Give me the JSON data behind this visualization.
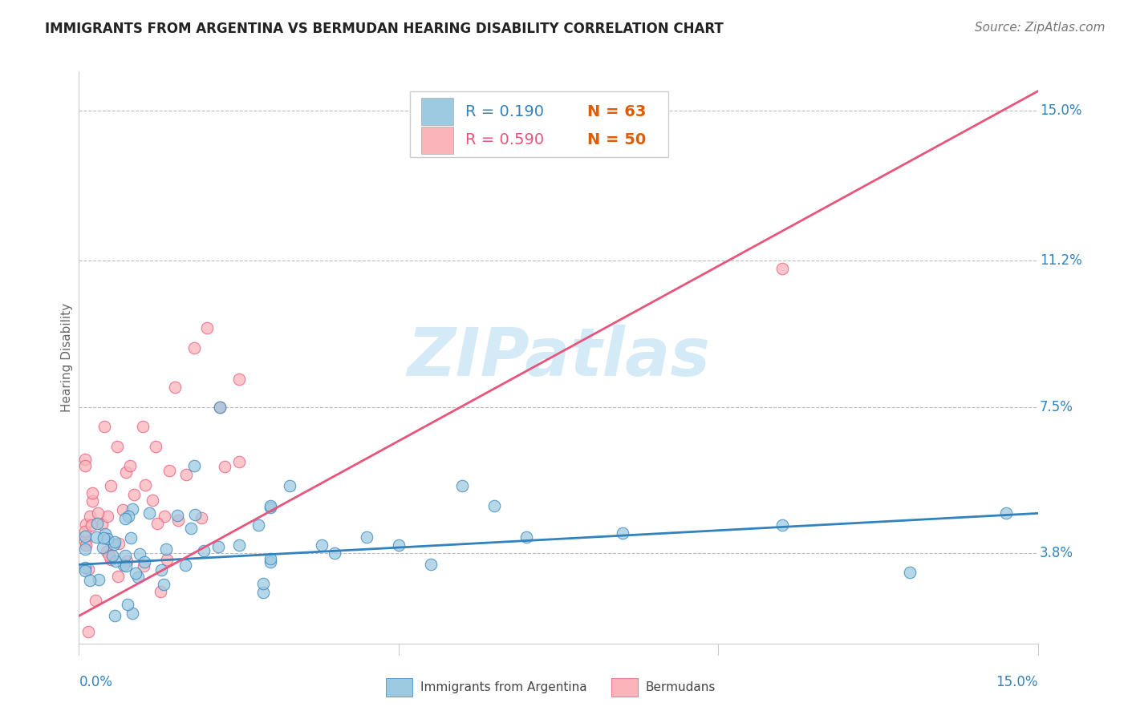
{
  "title": "IMMIGRANTS FROM ARGENTINA VS BERMUDAN HEARING DISABILITY CORRELATION CHART",
  "source": "Source: ZipAtlas.com",
  "ylabel": "Hearing Disability",
  "xlim": [
    0.0,
    0.15
  ],
  "ylim": [
    0.015,
    0.16
  ],
  "ytick_vals": [
    0.038,
    0.075,
    0.112,
    0.15
  ],
  "ytick_labels": [
    "3.8%",
    "7.5%",
    "11.2%",
    "15.0%"
  ],
  "legend_r1": "R = 0.190",
  "legend_n1": "N = 63",
  "legend_r2": "R = 0.590",
  "legend_n2": "N = 50",
  "color_blue": "#9ecae1",
  "color_pink": "#fbb4b9",
  "line_color_blue": "#3182bd",
  "line_color_pink": "#e8547a",
  "legend_r_color_blue": "#3182bd",
  "legend_r_color_pink": "#e8547a",
  "legend_n_color": "#e05c00",
  "watermark": "ZIPatlas",
  "title_fontsize": 12,
  "axis_label_fontsize": 11,
  "tick_fontsize": 12,
  "legend_fontsize": 14,
  "source_fontsize": 11
}
